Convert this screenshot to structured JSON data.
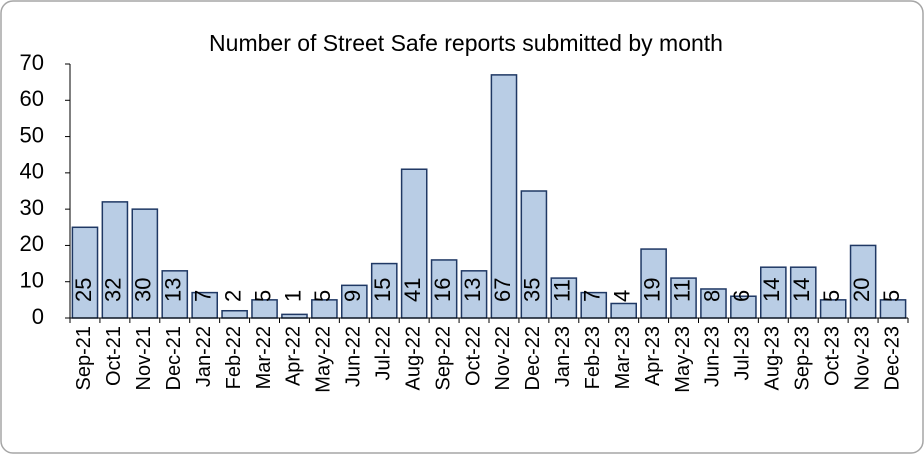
{
  "chart_data": {
    "type": "bar",
    "title": "Number of Street Safe reports submitted by month",
    "categories": [
      "Sep-21",
      "Oct-21",
      "Nov-21",
      "Dec-21",
      "Jan-22",
      "Feb-22",
      "Mar-22",
      "Apr-22",
      "May-22",
      "Jun-22",
      "Jul-22",
      "Aug-22",
      "Sep-22",
      "Oct-22",
      "Nov-22",
      "Dec-22",
      "Jan-23",
      "Feb-23",
      "Mar-23",
      "Apr-23",
      "May-23",
      "Jun-23",
      "Jul-23",
      "Aug-23",
      "Sep-23",
      "Oct-23",
      "Nov-23",
      "Dec-23"
    ],
    "values": [
      25,
      32,
      30,
      13,
      7,
      2,
      5,
      1,
      5,
      9,
      15,
      41,
      16,
      13,
      67,
      35,
      11,
      7,
      4,
      19,
      11,
      8,
      6,
      14,
      14,
      5,
      20,
      5
    ],
    "color": "#b9cde5",
    "ylim": [
      0,
      70
    ],
    "yticks": [
      0,
      10,
      20,
      30,
      40,
      50,
      60,
      70
    ],
    "grid": false
  }
}
